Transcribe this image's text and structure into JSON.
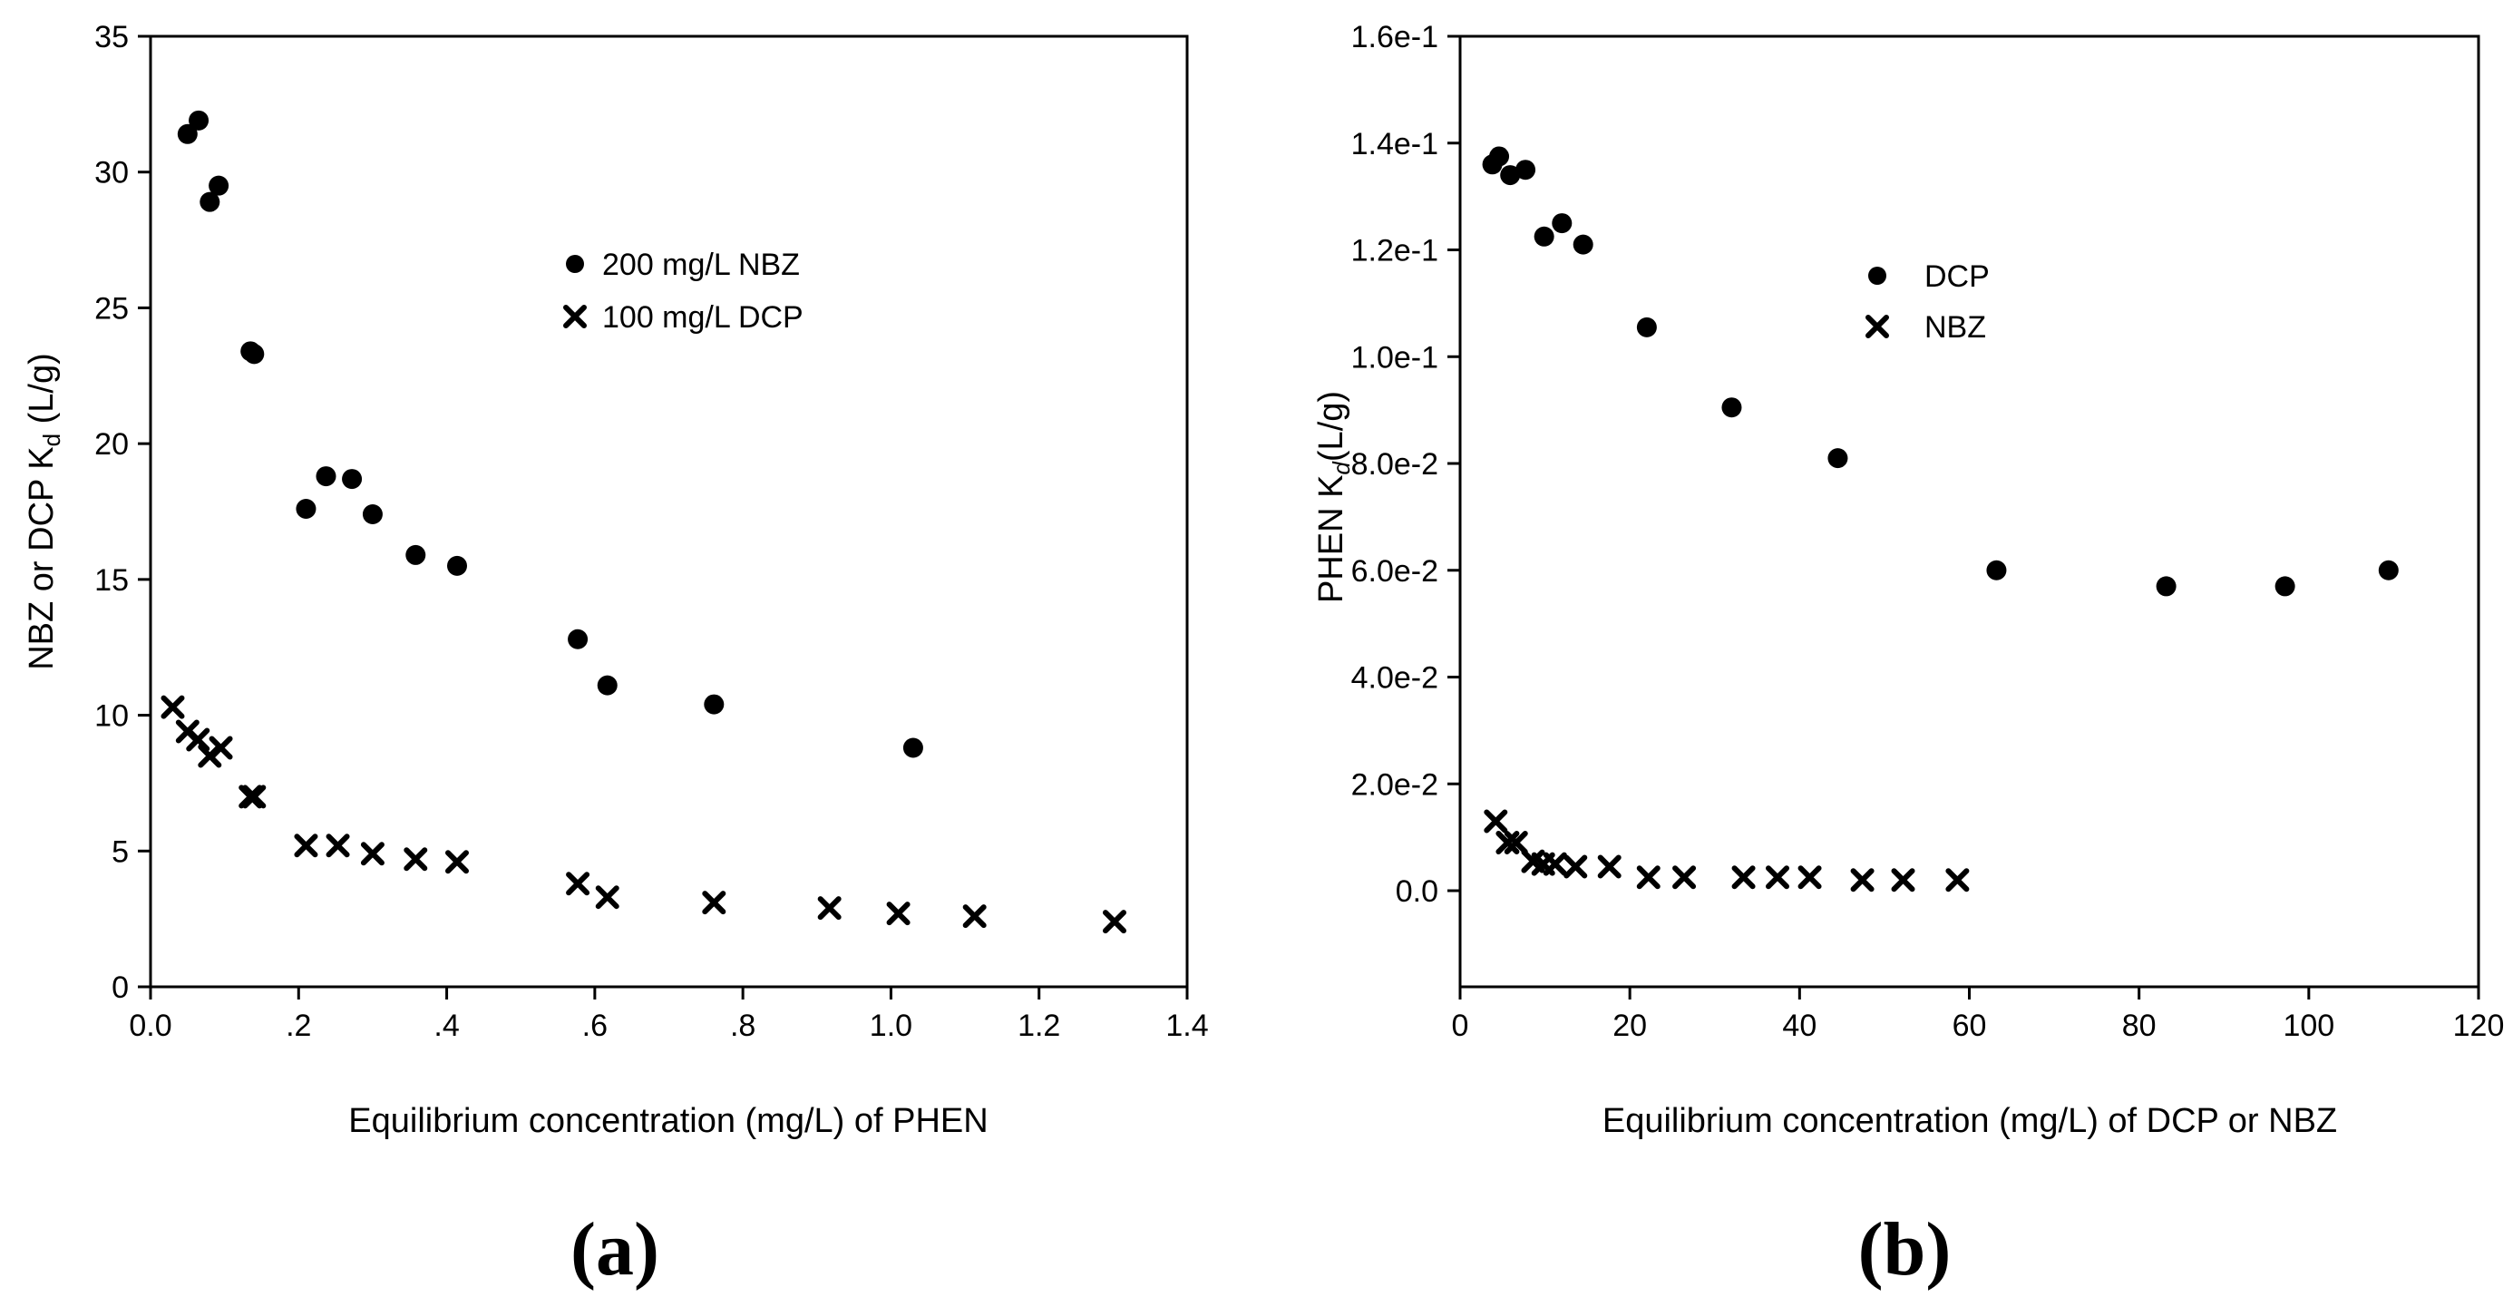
{
  "colors": {
    "marker": "#000000",
    "axis": "#000000",
    "background": "#ffffff"
  },
  "chart_data": [
    {
      "type": "scatter",
      "panel_label": "(a)",
      "xlabel": "Equilibrium concentration (mg/L) of PHEN",
      "ylabel_main": "NBZ or DCP K",
      "ylabel_sub": "d",
      "ylabel_unit": " (L/g)",
      "xlim": [
        0,
        1.4
      ],
      "ylim": [
        0,
        35
      ],
      "x_ticks": [
        0,
        0.2,
        0.4,
        0.6,
        0.8,
        1.0,
        1.2,
        1.4
      ],
      "x_tick_labels": [
        "0.0",
        ".2",
        ".4",
        ".6",
        ".8",
        "1.0",
        "1.2",
        "1.4"
      ],
      "y_ticks": [
        0,
        5,
        10,
        15,
        20,
        25,
        30,
        35
      ],
      "y_tick_labels": [
        "0",
        "5",
        "10",
        "15",
        "20",
        "25",
        "30",
        "35"
      ],
      "legend_position": "upper-center",
      "series": [
        {
          "name": "200 mg/L NBZ",
          "marker": "circle",
          "x": [
            0.05,
            0.065,
            0.08,
            0.092,
            0.135,
            0.14,
            0.21,
            0.237,
            0.272,
            0.3,
            0.358,
            0.414,
            0.577,
            0.617,
            0.761,
            1.03
          ],
          "y": [
            31.4,
            31.9,
            28.9,
            29.5,
            23.4,
            23.3,
            17.6,
            18.8,
            18.7,
            17.4,
            15.9,
            15.5,
            12.8,
            11.1,
            10.4,
            8.8
          ]
        },
        {
          "name": "100 mg/L DCP",
          "marker": "x",
          "x": [
            0.03,
            0.05,
            0.064,
            0.08,
            0.095,
            0.135,
            0.14,
            0.21,
            0.253,
            0.3,
            0.358,
            0.414,
            0.577,
            0.617,
            0.761,
            0.917,
            1.01,
            1.113,
            1.302
          ],
          "y": [
            10.3,
            9.4,
            9.1,
            8.5,
            8.8,
            7.0,
            7.0,
            5.2,
            5.2,
            4.9,
            4.7,
            4.6,
            3.8,
            3.3,
            3.1,
            2.9,
            2.7,
            2.6,
            2.4
          ]
        }
      ]
    },
    {
      "type": "scatter",
      "panel_label": "(b)",
      "xlabel": "Equilibrium concentration (mg/L) of DCP or NBZ",
      "ylabel_main": "PHEN K",
      "ylabel_sub": "d",
      "ylabel_unit": "(L/g)",
      "xlim": [
        0,
        120
      ],
      "ylim": [
        -0.018,
        0.16
      ],
      "x_ticks": [
        0,
        20,
        40,
        60,
        80,
        100,
        120
      ],
      "x_tick_labels": [
        "0",
        "20",
        "40",
        "60",
        "80",
        "100",
        "120"
      ],
      "y_ticks": [
        0,
        0.02,
        0.04,
        0.06,
        0.08,
        0.1,
        0.12,
        0.14,
        0.16
      ],
      "y_tick_labels": [
        "0.0",
        "2.0e-2",
        "4.0e-2",
        "6.0e-2",
        "8.0e-2",
        "1.0e-1",
        "1.2e-1",
        "1.4e-1",
        "1.6e-1"
      ],
      "legend_position": "upper-center",
      "series": [
        {
          "name": "DCP",
          "marker": "circle",
          "x": [
            3.8,
            4.6,
            5.9,
            7.7,
            9.9,
            12.0,
            14.5,
            22.0,
            32.0,
            44.5,
            63.2,
            83.2,
            97.2,
            109.4
          ],
          "y": [
            0.136,
            0.1375,
            0.134,
            0.135,
            0.1225,
            0.125,
            0.121,
            0.1055,
            0.0905,
            0.081,
            0.06,
            0.057,
            0.057,
            0.06
          ]
        },
        {
          "name": "NBZ",
          "marker": "x",
          "x": [
            4.2,
            5.6,
            6.6,
            8.6,
            9.8,
            11.2,
            13.6,
            17.6,
            22.2,
            26.4,
            33.4,
            37.4,
            41.2,
            47.4,
            52.2,
            58.6
          ],
          "y": [
            0.013,
            0.009,
            0.009,
            0.0055,
            0.005,
            0.005,
            0.0045,
            0.0045,
            0.0025,
            0.0025,
            0.0025,
            0.0025,
            0.0025,
            0.002,
            0.002,
            0.002
          ]
        }
      ]
    }
  ]
}
